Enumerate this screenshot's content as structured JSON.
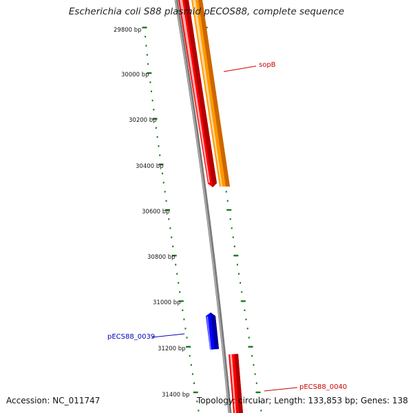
{
  "title": "Escherichia coli S88 plasmid pECOS88, complete sequence",
  "ticks": [
    {
      "label": "29800 bp"
    },
    {
      "label": "30000 bp"
    },
    {
      "label": "30200 bp"
    },
    {
      "label": "30400 bp"
    },
    {
      "label": "30600 bp"
    },
    {
      "label": "30800 bp"
    },
    {
      "label": "31000 bp"
    },
    {
      "label": "31200 bp"
    },
    {
      "label": "31400 bp"
    }
  ],
  "genes": [
    {
      "name": "sopB",
      "color": "#cc0000"
    },
    {
      "name": "pECS88_0039",
      "color": "#0000bb"
    },
    {
      "name": "pECS88_0040",
      "color": "#cc0000"
    }
  ],
  "footer": {
    "accession": "Accession: NC_011747",
    "topology": "Topology: circular; Length: 133,853 bp; Genes: 138"
  },
  "colors": {
    "tick_marks": "#1a7a1a",
    "backbone": "#808080",
    "gene_red": "#ff0000",
    "gene_orange": "#ff9900",
    "gene_blue": "#0000ff"
  }
}
